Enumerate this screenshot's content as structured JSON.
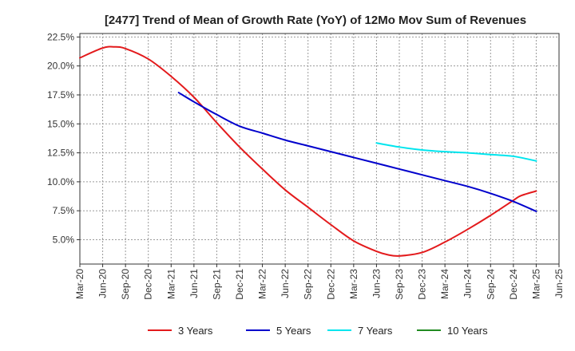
{
  "chart_data": {
    "type": "line",
    "title": "[2477]  Trend of Mean of Growth Rate (YoY) of 12Mo Mov Sum of Revenues",
    "xlabel": "",
    "ylabel": "",
    "x_ticks": [
      "Mar-20",
      "Jun-20",
      "Sep-20",
      "Dec-20",
      "Mar-21",
      "Jun-21",
      "Sep-21",
      "Dec-21",
      "Mar-22",
      "Jun-22",
      "Sep-22",
      "Dec-22",
      "Mar-23",
      "Jun-23",
      "Sep-23",
      "Dec-23",
      "Mar-24",
      "Jun-24",
      "Sep-24",
      "Dec-24",
      "Mar-25",
      "Jun-25"
    ],
    "y_ticks": [
      "5.0%",
      "7.5%",
      "10.0%",
      "12.5%",
      "15.0%",
      "17.5%",
      "20.0%",
      "22.5%"
    ],
    "y_tick_values": [
      5.0,
      7.5,
      10.0,
      12.5,
      15.0,
      17.5,
      20.0,
      22.5
    ],
    "ylim": [
      2.9,
      22.8
    ],
    "grid": true,
    "legend_position": "bottom",
    "series": [
      {
        "name": "3 Years",
        "color": "#e31a1c",
        "points": [
          [
            0,
            20.7
          ],
          [
            1,
            21.55
          ],
          [
            1.5,
            21.65
          ],
          [
            2,
            21.5
          ],
          [
            3,
            20.6
          ],
          [
            4,
            19.1
          ],
          [
            5,
            17.3
          ],
          [
            6,
            15.1
          ],
          [
            7,
            13.0
          ],
          [
            8,
            11.1
          ],
          [
            9,
            9.3
          ],
          [
            10,
            7.8
          ],
          [
            11,
            6.3
          ],
          [
            12,
            4.9
          ],
          [
            13,
            4.0
          ],
          [
            13.5,
            3.7
          ],
          [
            14,
            3.6
          ],
          [
            15,
            3.9
          ],
          [
            16,
            4.8
          ],
          [
            17,
            5.9
          ],
          [
            18,
            7.1
          ],
          [
            19,
            8.4
          ],
          [
            19.33,
            8.8
          ],
          [
            20,
            9.2
          ]
        ]
      },
      {
        "name": "5 Years",
        "color": "#0000cc",
        "points": [
          [
            4.33,
            17.7
          ],
          [
            5,
            16.9
          ],
          [
            6,
            15.8
          ],
          [
            7,
            14.8
          ],
          [
            8,
            14.2
          ],
          [
            9,
            13.6
          ],
          [
            10,
            13.1
          ],
          [
            11,
            12.6
          ],
          [
            12,
            12.1
          ],
          [
            13,
            11.6
          ],
          [
            14,
            11.1
          ],
          [
            15,
            10.6
          ],
          [
            16,
            10.1
          ],
          [
            17,
            9.6
          ],
          [
            18,
            9.0
          ],
          [
            19,
            8.3
          ],
          [
            20,
            7.45
          ]
        ]
      },
      {
        "name": "7 Years",
        "color": "#00e5ee",
        "points": [
          [
            13,
            13.35
          ],
          [
            14,
            13.0
          ],
          [
            15,
            12.75
          ],
          [
            16,
            12.6
          ],
          [
            17,
            12.5
          ],
          [
            18,
            12.35
          ],
          [
            19,
            12.2
          ],
          [
            20,
            11.8
          ]
        ]
      },
      {
        "name": "10 Years",
        "color": "#228b22",
        "points": []
      }
    ]
  }
}
